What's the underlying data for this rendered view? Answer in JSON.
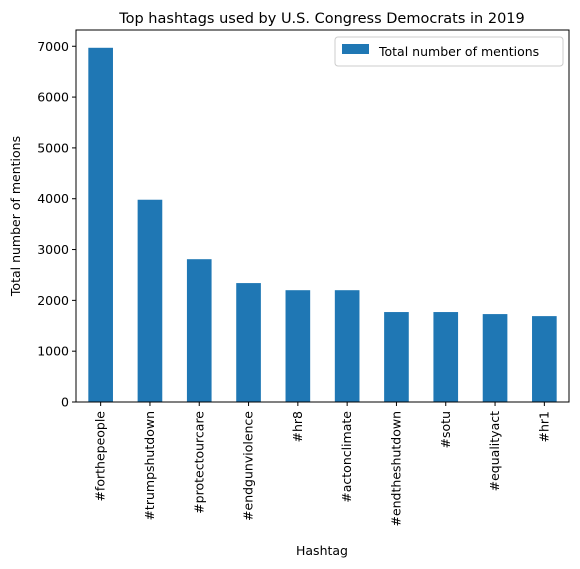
{
  "chart_data": {
    "type": "bar",
    "title": "Top hashtags used by U.S. Congress Democrats in 2019",
    "xlabel": "Hashtag",
    "ylabel": "Total number of mentions",
    "categories": [
      "#forthepeople",
      "#trumpshutdown",
      "#protectourcare",
      "#endgunviolence",
      "#hr8",
      "#actonclimate",
      "#endtheshutdown",
      "#sotu",
      "#equalityact",
      "#hr1"
    ],
    "series": [
      {
        "name": "Total number of mentions",
        "values": [
          6970,
          3980,
          2810,
          2340,
          2200,
          2200,
          1770,
          1770,
          1730,
          1690
        ],
        "color": "#1f77b4"
      }
    ],
    "ylim": [
      0,
      7320
    ],
    "yticks": [
      0,
      1000,
      2000,
      3000,
      4000,
      5000,
      6000,
      7000
    ],
    "grid": false,
    "legend": "top-right"
  }
}
